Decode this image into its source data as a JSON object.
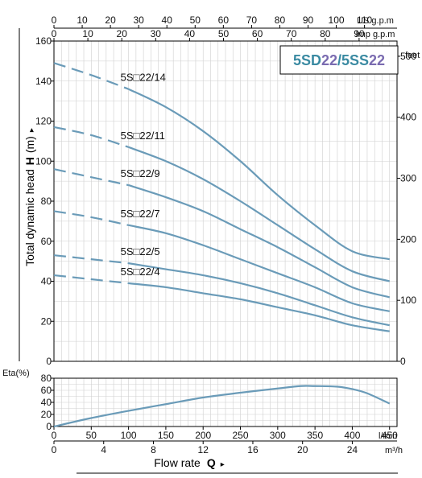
{
  "title_box": {
    "part_a": "5SD",
    "part_b": "22",
    "part_c": "/5SS",
    "part_d": "22",
    "color_teal": "#3a8aa2",
    "color_purple": "#7a6bb0"
  },
  "top_axes": {
    "us_gpm": {
      "unit": "US g.p.m",
      "ticks": [
        "0",
        "10",
        "20",
        "30",
        "40",
        "50",
        "60",
        "70",
        "80",
        "90",
        "100",
        "110"
      ]
    },
    "imp_gpm": {
      "unit": "Imp g.p.m",
      "ticks": [
        "0",
        "10",
        "20",
        "30",
        "40",
        "50",
        "60",
        "70",
        "80",
        "90"
      ]
    }
  },
  "bottom_axes": {
    "lmin": {
      "unit": "l/min",
      "ticks": [
        "0",
        "50",
        "100",
        "150",
        "200",
        "250",
        "300",
        "350",
        "400",
        "450"
      ]
    },
    "m3h": {
      "unit": "m³/h",
      "ticks": [
        "0",
        "4",
        "8",
        "12",
        "16",
        "20",
        "24"
      ]
    },
    "title_prefix": "Flow rate",
    "title_symbol": "Q",
    "title_arrow": "▸"
  },
  "head_axis": {
    "label_prefix": "Total dynamic head",
    "label_symbol": "H",
    "label_unit": "(m)",
    "label_arrow": "▸",
    "ticks": [
      "0",
      "20",
      "40",
      "60",
      "80",
      "100",
      "120",
      "140",
      "160"
    ]
  },
  "feet_axis": {
    "unit": "feet",
    "ticks": [
      "0",
      "100",
      "200",
      "300",
      "400",
      "500"
    ]
  },
  "eta_axis": {
    "label": "Eta(%)",
    "ticks": [
      "0",
      "20",
      "40",
      "60",
      "80"
    ]
  },
  "curve_color": "#6a9bb8",
  "chart_data": [
    {
      "type": "line",
      "title": "5SD22/5SS22",
      "xlabel": "Flow rate Q",
      "ylabel": "Total dynamic head H (m)",
      "xlim": [
        0,
        460
      ],
      "ylim": [
        0,
        160
      ],
      "x_unit": "l/min",
      "y_unit": "m",
      "secondary_axes": {
        "top_us_gpm": [
          0,
          110
        ],
        "top_imp_gpm": [
          0,
          90
        ],
        "bottom_m3h": [
          0,
          24
        ],
        "right_feet": [
          0,
          500
        ]
      },
      "grid": true,
      "series": [
        {
          "name": "5S□22/14",
          "dashed_until": 100,
          "x": [
            0,
            50,
            100,
            150,
            200,
            250,
            300,
            350,
            400,
            450
          ],
          "y": [
            149,
            143,
            136,
            127,
            115,
            100,
            83,
            68,
            55,
            51
          ]
        },
        {
          "name": "5S□22/11",
          "dashed_until": 100,
          "x": [
            0,
            50,
            100,
            150,
            200,
            250,
            300,
            350,
            400,
            450
          ],
          "y": [
            117,
            113,
            107,
            100,
            91,
            80,
            68,
            56,
            45,
            40
          ]
        },
        {
          "name": "5S□22/9",
          "dashed_until": 100,
          "x": [
            0,
            50,
            100,
            150,
            200,
            250,
            300,
            350,
            400,
            450
          ],
          "y": [
            96,
            92,
            88,
            82,
            75,
            66,
            57,
            47,
            37,
            32
          ]
        },
        {
          "name": "5S□22/7",
          "dashed_until": 100,
          "x": [
            0,
            50,
            100,
            150,
            200,
            250,
            300,
            350,
            400,
            450
          ],
          "y": [
            75,
            72,
            68,
            64,
            58,
            51,
            44,
            37,
            29,
            25
          ]
        },
        {
          "name": "5S□22/5",
          "dashed_until": 100,
          "x": [
            0,
            50,
            100,
            150,
            200,
            250,
            300,
            350,
            400,
            450
          ],
          "y": [
            53,
            51,
            49,
            46,
            43,
            39,
            34,
            28,
            22,
            18
          ]
        },
        {
          "name": "5S□22/4",
          "dashed_until": 100,
          "x": [
            0,
            50,
            100,
            150,
            200,
            250,
            300,
            350,
            400,
            450
          ],
          "y": [
            43,
            41,
            39,
            37,
            34,
            31,
            27,
            23,
            18,
            15
          ]
        }
      ]
    },
    {
      "type": "line",
      "xlabel": "Flow rate Q",
      "ylabel": "Eta(%)",
      "xlim": [
        0,
        460
      ],
      "ylim": [
        0,
        80
      ],
      "x_unit": "l/min",
      "grid": true,
      "series": [
        {
          "x": [
            0,
            50,
            100,
            150,
            200,
            250,
            300,
            330,
            350,
            380,
            400,
            420,
            450
          ],
          "y": [
            0,
            14,
            26,
            37,
            48,
            56,
            63,
            67,
            67,
            66,
            62,
            55,
            38
          ]
        }
      ]
    }
  ]
}
